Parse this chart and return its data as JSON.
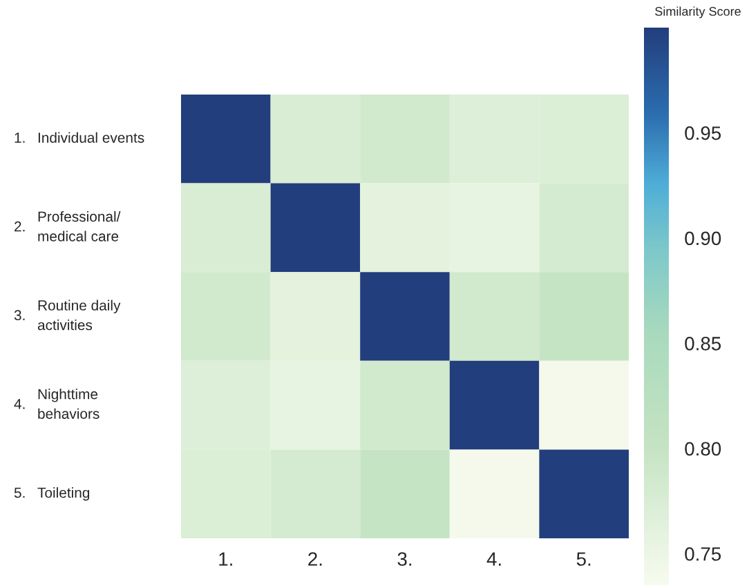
{
  "chart_data": {
    "type": "heatmap",
    "clabel": "Similarity Score",
    "categories": [
      "1.",
      "2.",
      "3.",
      "4.",
      "5."
    ],
    "y_categories": [
      "1. Individual events",
      "2. Professional/\nmedical care",
      "3. Routine daily\nactivities",
      "4. Nighttime\nbehaviors",
      "5. Toileting"
    ],
    "cells": [
      [
        1.0,
        0.775,
        0.785,
        0.77,
        0.772
      ],
      [
        0.775,
        1.0,
        0.76,
        0.755,
        0.78
      ],
      [
        0.785,
        0.76,
        1.0,
        0.785,
        0.8
      ],
      [
        0.77,
        0.755,
        0.785,
        1.0,
        0.74
      ],
      [
        0.772,
        0.78,
        0.8,
        0.74,
        1.0
      ]
    ],
    "clim": [
      0.735,
      1.0
    ],
    "cticks": [
      0.75,
      {
        "value": 0.8,
        "label": "0.80"
      },
      0.85,
      {
        "value": 0.9,
        "label": "0.90"
      },
      0.95
    ]
  }
}
